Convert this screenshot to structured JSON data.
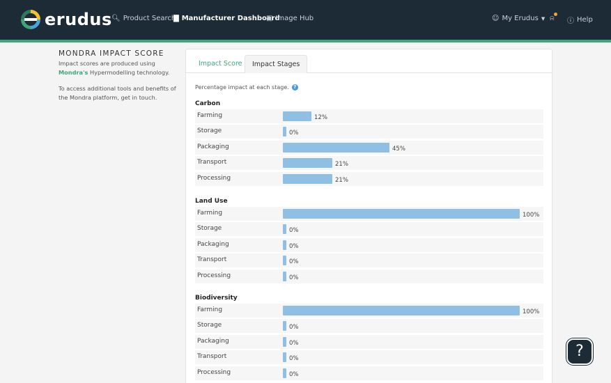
{
  "header": {
    "brand": "erudus",
    "nav": {
      "product_search": "Product Search",
      "manufacturer_dashboard": "Manufacturer Dashboard",
      "image_hub": "Image Hub",
      "account": "My Erudus",
      "help": "Help"
    },
    "colors": {
      "bar": "#1c2b36",
      "accent": "#3fa57c",
      "notify": "#f2a630"
    }
  },
  "sidebar": {
    "title": "MONDRA IMPACT SCORE",
    "line1": "Impact scores are produced using",
    "brand_link": "Mondra's",
    "line2": " Hypermodelling technology.",
    "access_text": "To access additional tools and benefits of the Mondra platform, get in touch."
  },
  "tabs": [
    {
      "label": "Impact Score",
      "active": false
    },
    {
      "label": "Impact Stages",
      "active": true
    }
  ],
  "intro": "Percentage impact at each stage.",
  "sections": [
    {
      "title": "Carbon",
      "stages": [
        {
          "label": "Farming",
          "percent": 12,
          "text": "12%"
        },
        {
          "label": "Storage",
          "percent": 0,
          "text": "0%"
        },
        {
          "label": "Packaging",
          "percent": 45,
          "text": "45%"
        },
        {
          "label": "Transport",
          "percent": 21,
          "text": "21%"
        },
        {
          "label": "Processing",
          "percent": 21,
          "text": "21%"
        }
      ]
    },
    {
      "title": "Land Use",
      "stages": [
        {
          "label": "Farming",
          "percent": 100,
          "text": "100%"
        },
        {
          "label": "Storage",
          "percent": 0,
          "text": "0%"
        },
        {
          "label": "Packaging",
          "percent": 0,
          "text": "0%"
        },
        {
          "label": "Transport",
          "percent": 0,
          "text": "0%"
        },
        {
          "label": "Processing",
          "percent": 0,
          "text": "0%"
        }
      ]
    },
    {
      "title": "Biodiversity",
      "stages": [
        {
          "label": "Farming",
          "percent": 100,
          "text": "100%"
        },
        {
          "label": "Storage",
          "percent": 0,
          "text": "0%"
        },
        {
          "label": "Packaging",
          "percent": 0,
          "text": "0%"
        },
        {
          "label": "Transport",
          "percent": 0,
          "text": "0%"
        },
        {
          "label": "Processing",
          "percent": 0,
          "text": "0%"
        }
      ]
    }
  ],
  "help_fab": "?"
}
